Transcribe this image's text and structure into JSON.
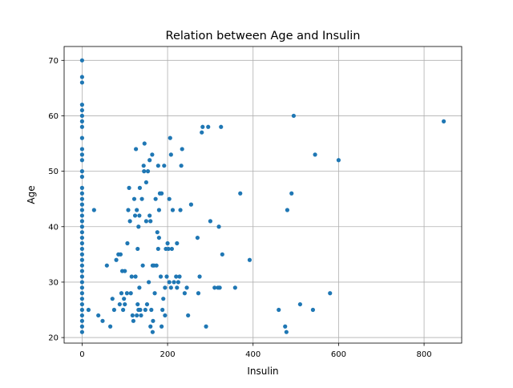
{
  "chart_data": {
    "type": "scatter",
    "title": "Relation between Age and Insulin",
    "xlabel": "Insulin",
    "ylabel": "Age",
    "xlim": [
      -42,
      888
    ],
    "ylim": [
      19,
      72.5
    ],
    "xticks": [
      0,
      200,
      400,
      600,
      800
    ],
    "yticks": [
      20,
      30,
      40,
      50,
      60,
      70
    ],
    "grid": true,
    "marker_color": "#1f77b4",
    "series": [
      {
        "points": [
          [
            0,
            21
          ],
          [
            0,
            22
          ],
          [
            0,
            23
          ],
          [
            0,
            24
          ],
          [
            0,
            25
          ],
          [
            0,
            26
          ],
          [
            0,
            27
          ],
          [
            0,
            28
          ],
          [
            0,
            29
          ],
          [
            0,
            30
          ],
          [
            0,
            31
          ],
          [
            0,
            32
          ],
          [
            0,
            33
          ],
          [
            0,
            34
          ],
          [
            0,
            35
          ],
          [
            0,
            36
          ],
          [
            0,
            37
          ],
          [
            0,
            38
          ],
          [
            0,
            39
          ],
          [
            0,
            40
          ],
          [
            0,
            41
          ],
          [
            0,
            42
          ],
          [
            0,
            43
          ],
          [
            0,
            44
          ],
          [
            0,
            45
          ],
          [
            0,
            46
          ],
          [
            0,
            47
          ],
          [
            0,
            49
          ],
          [
            0,
            50
          ],
          [
            0,
            52
          ],
          [
            0,
            53
          ],
          [
            0,
            54
          ],
          [
            0,
            56
          ],
          [
            0,
            58
          ],
          [
            0,
            59
          ],
          [
            0,
            60
          ],
          [
            0,
            61
          ],
          [
            0,
            62
          ],
          [
            0,
            66
          ],
          [
            0,
            67
          ],
          [
            0,
            70
          ],
          [
            15,
            25
          ],
          [
            28,
            43
          ],
          [
            38,
            24
          ],
          [
            48,
            23
          ],
          [
            58,
            33
          ],
          [
            66,
            22
          ],
          [
            71,
            27
          ],
          [
            75,
            25
          ],
          [
            80,
            34
          ],
          [
            85,
            35
          ],
          [
            88,
            26
          ],
          [
            90,
            35
          ],
          [
            92,
            28
          ],
          [
            94,
            32
          ],
          [
            96,
            25
          ],
          [
            98,
            27
          ],
          [
            100,
            26
          ],
          [
            100,
            32
          ],
          [
            106,
            37
          ],
          [
            105,
            28
          ],
          [
            108,
            43
          ],
          [
            110,
            47
          ],
          [
            112,
            41
          ],
          [
            114,
            28
          ],
          [
            116,
            31
          ],
          [
            118,
            24
          ],
          [
            120,
            23
          ],
          [
            122,
            45
          ],
          [
            124,
            42
          ],
          [
            125,
            31
          ],
          [
            126,
            54
          ],
          [
            128,
            43
          ],
          [
            128,
            24
          ],
          [
            130,
            36
          ],
          [
            130,
            26
          ],
          [
            132,
            25
          ],
          [
            132,
            40
          ],
          [
            134,
            42
          ],
          [
            134,
            29
          ],
          [
            135,
            47
          ],
          [
            136,
            25
          ],
          [
            138,
            24
          ],
          [
            140,
            45
          ],
          [
            142,
            33
          ],
          [
            144,
            51
          ],
          [
            145,
            50
          ],
          [
            146,
            55
          ],
          [
            148,
            25
          ],
          [
            150,
            41
          ],
          [
            150,
            48
          ],
          [
            152,
            26
          ],
          [
            154,
            50
          ],
          [
            156,
            30
          ],
          [
            158,
            52
          ],
          [
            158,
            42
          ],
          [
            160,
            41
          ],
          [
            160,
            22
          ],
          [
            162,
            25
          ],
          [
            164,
            53
          ],
          [
            165,
            21
          ],
          [
            165,
            33
          ],
          [
            166,
            23
          ],
          [
            168,
            33
          ],
          [
            170,
            28
          ],
          [
            172,
            45
          ],
          [
            174,
            33
          ],
          [
            176,
            39
          ],
          [
            178,
            36
          ],
          [
            178,
            51
          ],
          [
            180,
            43
          ],
          [
            180,
            38
          ],
          [
            182,
            46
          ],
          [
            184,
            31
          ],
          [
            186,
            22
          ],
          [
            186,
            46
          ],
          [
            188,
            25
          ],
          [
            190,
            27
          ],
          [
            192,
            51
          ],
          [
            194,
            29
          ],
          [
            194,
            24
          ],
          [
            196,
            36
          ],
          [
            198,
            31
          ],
          [
            200,
            37
          ],
          [
            202,
            36
          ],
          [
            204,
            30
          ],
          [
            204,
            45
          ],
          [
            206,
            56
          ],
          [
            208,
            53
          ],
          [
            208,
            29
          ],
          [
            210,
            36
          ],
          [
            212,
            43
          ],
          [
            215,
            30
          ],
          [
            220,
            31
          ],
          [
            222,
            29
          ],
          [
            222,
            37
          ],
          [
            225,
            30
          ],
          [
            228,
            31
          ],
          [
            230,
            43
          ],
          [
            232,
            51
          ],
          [
            234,
            54
          ],
          [
            240,
            28
          ],
          [
            245,
            29
          ],
          [
            248,
            24
          ],
          [
            255,
            44
          ],
          [
            270,
            38
          ],
          [
            272,
            28
          ],
          [
            275,
            31
          ],
          [
            280,
            57
          ],
          [
            282,
            58
          ],
          [
            290,
            22
          ],
          [
            295,
            58
          ],
          [
            300,
            41
          ],
          [
            310,
            29
          ],
          [
            318,
            29
          ],
          [
            320,
            40
          ],
          [
            322,
            29
          ],
          [
            325,
            58
          ],
          [
            328,
            35
          ],
          [
            358,
            29
          ],
          [
            370,
            46
          ],
          [
            392,
            34
          ],
          [
            460,
            25
          ],
          [
            475,
            22
          ],
          [
            478,
            21
          ],
          [
            480,
            43
          ],
          [
            490,
            46
          ],
          [
            495,
            60
          ],
          [
            510,
            26
          ],
          [
            540,
            25
          ],
          [
            545,
            53
          ],
          [
            580,
            28
          ],
          [
            600,
            52
          ],
          [
            846,
            59
          ]
        ]
      }
    ]
  }
}
